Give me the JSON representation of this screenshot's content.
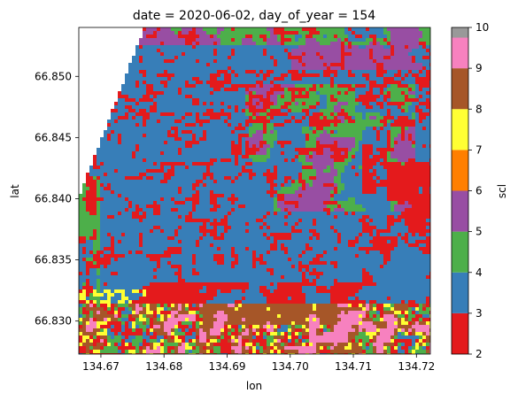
{
  "chart_data": {
    "type": "heatmap",
    "title": "date = 2020-06-02, day_of_year = 154",
    "xlabel": "lon",
    "ylabel": "lat",
    "xlim": [
      134.6665,
      134.7222
    ],
    "ylim": [
      66.8273,
      66.854
    ],
    "x_ticks": [
      134.67,
      134.68,
      134.69,
      134.7,
      134.71,
      134.72
    ],
    "x_tick_labels": [
      "134.67",
      "134.68",
      "134.69",
      "134.70",
      "134.71",
      "134.72"
    ],
    "y_ticks": [
      66.83,
      66.835,
      66.84,
      66.845,
      66.85
    ],
    "y_tick_labels": [
      "66.830",
      "66.835",
      "66.840",
      "66.845",
      "66.850"
    ],
    "colorbar": {
      "label": "scl",
      "range": [
        2,
        10
      ],
      "ticks": [
        2,
        3,
        4,
        5,
        6,
        7,
        8,
        9,
        10
      ],
      "tick_labels": [
        "2",
        "3",
        "4",
        "5",
        "6",
        "7",
        "8",
        "9",
        "10"
      ],
      "bands": [
        {
          "from": 2,
          "to": 3,
          "color": "#e41a1c"
        },
        {
          "from": 3,
          "to": 4,
          "color": "#377eb8"
        },
        {
          "from": 4,
          "to": 5,
          "color": "#4daf4a"
        },
        {
          "from": 5,
          "to": 6,
          "color": "#984ea3"
        },
        {
          "from": 6,
          "to": 7,
          "color": "#ff7f00"
        },
        {
          "from": 7,
          "to": 8,
          "color": "#ffff33"
        },
        {
          "from": 8,
          "to": 9,
          "color": "#a65628"
        },
        {
          "from": 9,
          "to": 10,
          "color": "#f781bf"
        },
        {
          "from": 10,
          "to": 10,
          "color": "#999999"
        }
      ]
    },
    "nodata_color": "#ffffff",
    "grid": false
  }
}
